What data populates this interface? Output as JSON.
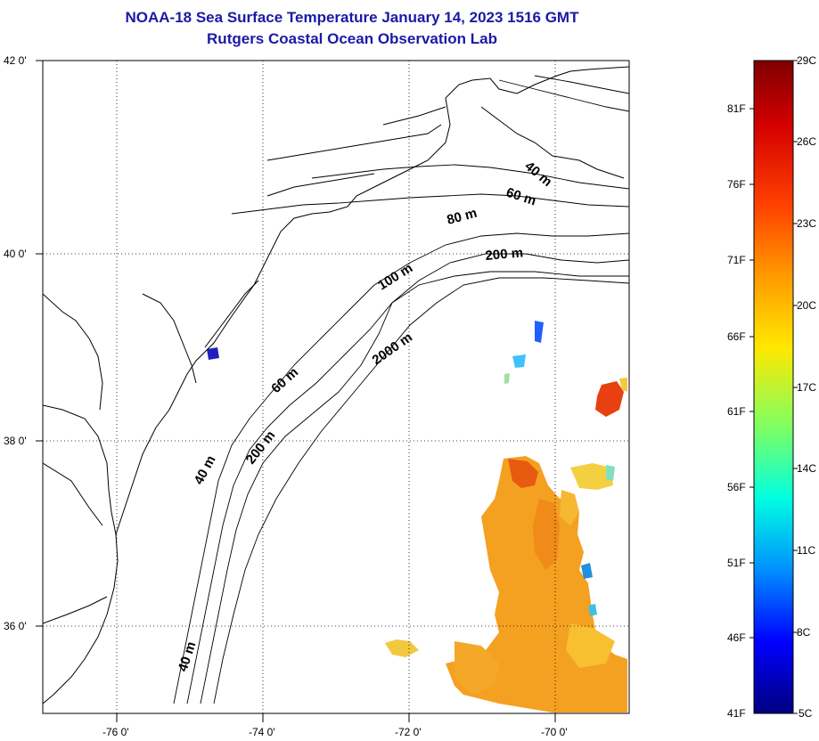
{
  "title": {
    "line1": "NOAA-18 Sea Surface Temperature January 14, 2023 1516 GMT",
    "line2": "Rutgers Coastal Ocean Observation Lab"
  },
  "map": {
    "lat_labels": [
      "42 0'",
      "40 0'",
      "38 0'",
      "36 0'"
    ],
    "lon_labels": [
      "-76 0'",
      "-74 0'",
      "-72 0'",
      "-70 0'"
    ],
    "depth_labels": [
      "40 m",
      "60 m",
      "80 m",
      "200 m",
      "100 m",
      "2000 m",
      "60 m",
      "200 m",
      "40 m",
      "40 m"
    ],
    "land_color": "#ffffff",
    "coastline_color": "#000000"
  },
  "colorbar": {
    "celsius_labels": [
      "29C",
      "26C",
      "23C",
      "20C",
      "17C",
      "14C",
      "11C",
      "8C",
      "5C"
    ],
    "fahrenheit_labels": [
      "81F",
      "76F",
      "71F",
      "66F",
      "61F",
      "56F",
      "51F",
      "46F",
      "41F"
    ],
    "gradient_colors": [
      "#7f0000",
      "#ff0000",
      "#ff8000",
      "#ffff00",
      "#80ff80",
      "#00ffff",
      "#0080ff",
      "#0000ff",
      "#00007f"
    ]
  }
}
